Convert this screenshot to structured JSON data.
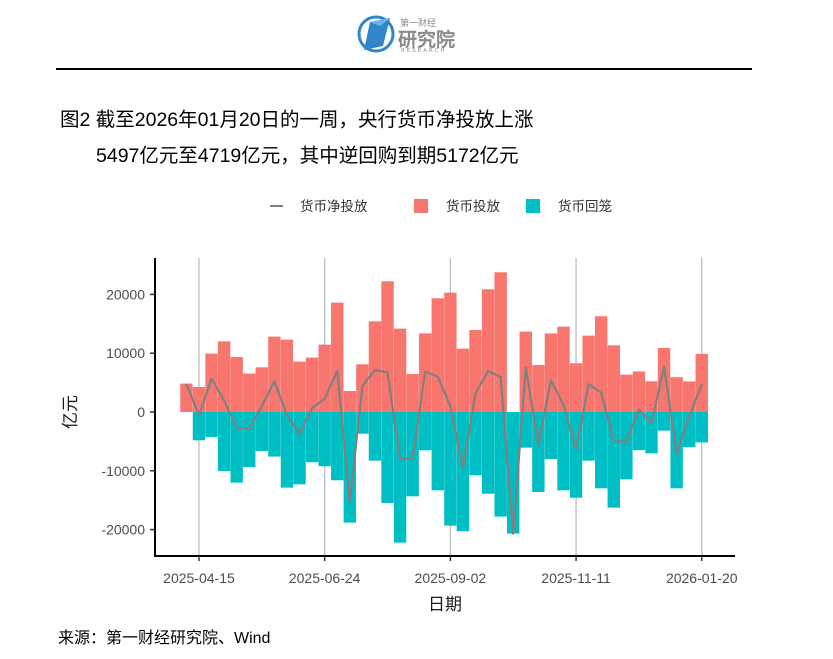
{
  "brand": {
    "top": "第一财经",
    "main": "研究院",
    "sub": "RESEARCH"
  },
  "title": {
    "line1": "图2 截至2026年01月20日的一周，央行货币净投放上涨",
    "line2": "5497亿元至4719亿元，其中逆回购到期5172亿元"
  },
  "source": "来源：第一财经研究院、Wind",
  "colors": {
    "injection": "#F8766D",
    "withdrawal": "#00BFC4",
    "net_line": "#808080"
  },
  "chart_data": {
    "type": "bar",
    "title": "",
    "xlabel": "日期",
    "ylabel": "亿元",
    "ylim": [
      -24500,
      26500
    ],
    "yticks": [
      -20000,
      -10000,
      0,
      10000,
      20000
    ],
    "xtick_labels": [
      "2025-04-15",
      "2025-06-24",
      "2025-09-02",
      "2025-11-11",
      "2026-01-20"
    ],
    "xtick_indices": [
      1,
      11,
      21,
      31,
      41
    ],
    "grid": "vertical major lines at x ticks",
    "legend_position": "top",
    "legend": [
      {
        "name": "货币净投放",
        "kind": "line"
      },
      {
        "name": "货币投放",
        "kind": "bar"
      },
      {
        "name": "货币回笼",
        "kind": "bar"
      }
    ],
    "x": [
      "2025-04-08",
      "2025-04-15",
      "2025-04-22",
      "2025-04-29",
      "2025-05-06",
      "2025-05-13",
      "2025-05-20",
      "2025-05-27",
      "2025-06-03",
      "2025-06-10",
      "2025-06-17",
      "2025-06-24",
      "2025-07-01",
      "2025-07-08",
      "2025-07-15",
      "2025-07-22",
      "2025-07-29",
      "2025-08-05",
      "2025-08-12",
      "2025-08-19",
      "2025-08-26",
      "2025-09-02",
      "2025-09-09",
      "2025-09-16",
      "2025-09-23",
      "2025-09-30",
      "2025-10-07",
      "2025-10-14",
      "2025-10-21",
      "2025-10-28",
      "2025-11-04",
      "2025-11-11",
      "2025-11-18",
      "2025-11-25",
      "2025-12-02",
      "2025-12-09",
      "2025-12-16",
      "2025-12-23",
      "2025-12-30",
      "2026-01-06",
      "2026-01-13",
      "2026-01-20"
    ],
    "series": [
      {
        "name": "货币投放",
        "type": "bar",
        "values": [
          4830,
          4250,
          9930,
          12020,
          9350,
          6530,
          7600,
          12820,
          12310,
          8570,
          9250,
          11460,
          18600,
          3570,
          8110,
          15420,
          22230,
          14180,
          6460,
          13380,
          19340,
          20300,
          10780,
          13950,
          20870,
          23760,
          0,
          13670,
          7990,
          13380,
          14520,
          8280,
          12990,
          16280,
          11340,
          6360,
          6900,
          5230,
          10880,
          5920,
          5200,
          9891
        ]
      },
      {
        "name": "货币回笼",
        "type": "bar",
        "values": [
          0,
          -4810,
          -4250,
          -10030,
          -12010,
          -9350,
          -6630,
          -7580,
          -12860,
          -12300,
          -8550,
          -9230,
          -11610,
          -18810,
          -3690,
          -8270,
          -15470,
          -22220,
          -14340,
          -6510,
          -13320,
          -19320,
          -20290,
          -10750,
          -13890,
          -17790,
          -20680,
          -6060,
          -13600,
          -7990,
          -13320,
          -14570,
          -8270,
          -12980,
          -16260,
          -11450,
          -6480,
          -7030,
          -3170,
          -12980,
          -5978,
          -5172
        ]
      },
      {
        "name": "货币净投放",
        "type": "line",
        "values": [
          4830,
          -560,
          5680,
          1990,
          -2660,
          -2820,
          970,
          5240,
          -550,
          -3730,
          700,
          2230,
          6990,
          -15240,
          4420,
          7150,
          6760,
          -8040,
          -7880,
          6870,
          6020,
          980,
          -9510,
          3200,
          6980,
          5970,
          -20680,
          7610,
          -5610,
          5390,
          1200,
          -6290,
          4720,
          3300,
          -4920,
          -5090,
          420,
          -1800,
          7710,
          -7060,
          -778,
          4719
        ]
      }
    ]
  }
}
